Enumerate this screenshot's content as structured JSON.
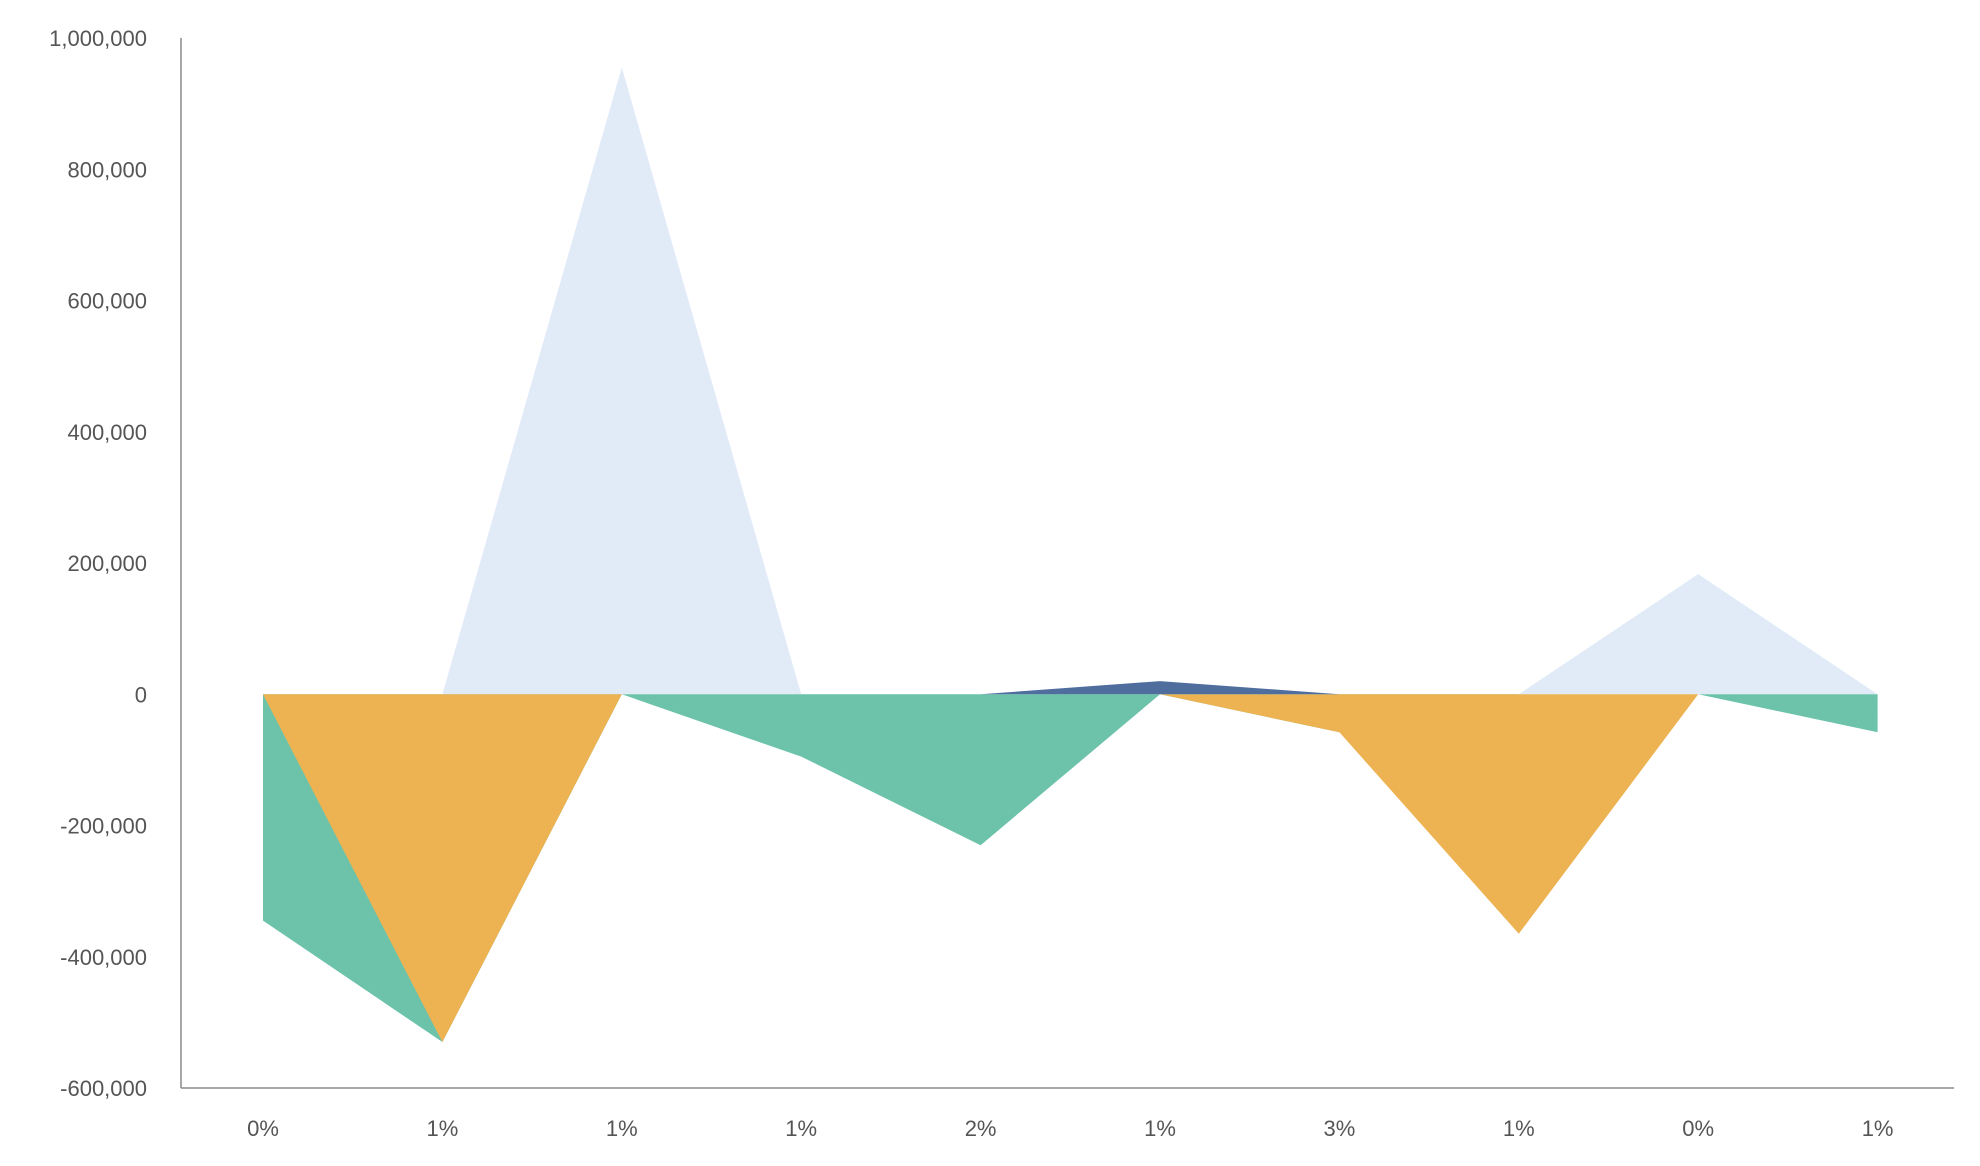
{
  "chart_data": {
    "type": "area",
    "categories": [
      "0%",
      "1%",
      "1%",
      "1%",
      "2%",
      "1%",
      "3%",
      "1%",
      "0%",
      "1%"
    ],
    "ylim": [
      -600000,
      1000000
    ],
    "yticks": [
      -600000,
      -400000,
      -200000,
      0,
      200000,
      400000,
      600000,
      800000,
      1000000
    ],
    "ytick_labels": [
      "-600,000",
      "-400,000",
      "-200,000",
      "0",
      "200,000",
      "400,000",
      "600,000",
      "800,000",
      "1,000,000"
    ],
    "grid": false,
    "legend": "none",
    "series": [
      {
        "color": "#E0EBF7",
        "values": [
          0,
          0,
          955000,
          0,
          -230000,
          0,
          0,
          0,
          183000,
          0
        ]
      },
      {
        "color": "#6CC3AA",
        "values": [
          -345000,
          -530000,
          0,
          -95000,
          -230000,
          0,
          -58000,
          0,
          0,
          -58000
        ]
      },
      {
        "color": "#EDB352",
        "values": [
          0,
          -530000,
          0,
          0,
          0,
          0,
          -58000,
          -365000,
          0,
          0
        ]
      },
      {
        "color": "#4F6E9E",
        "values": [
          0,
          0,
          0,
          0,
          0,
          20000,
          0,
          0,
          0,
          0
        ]
      }
    ]
  }
}
